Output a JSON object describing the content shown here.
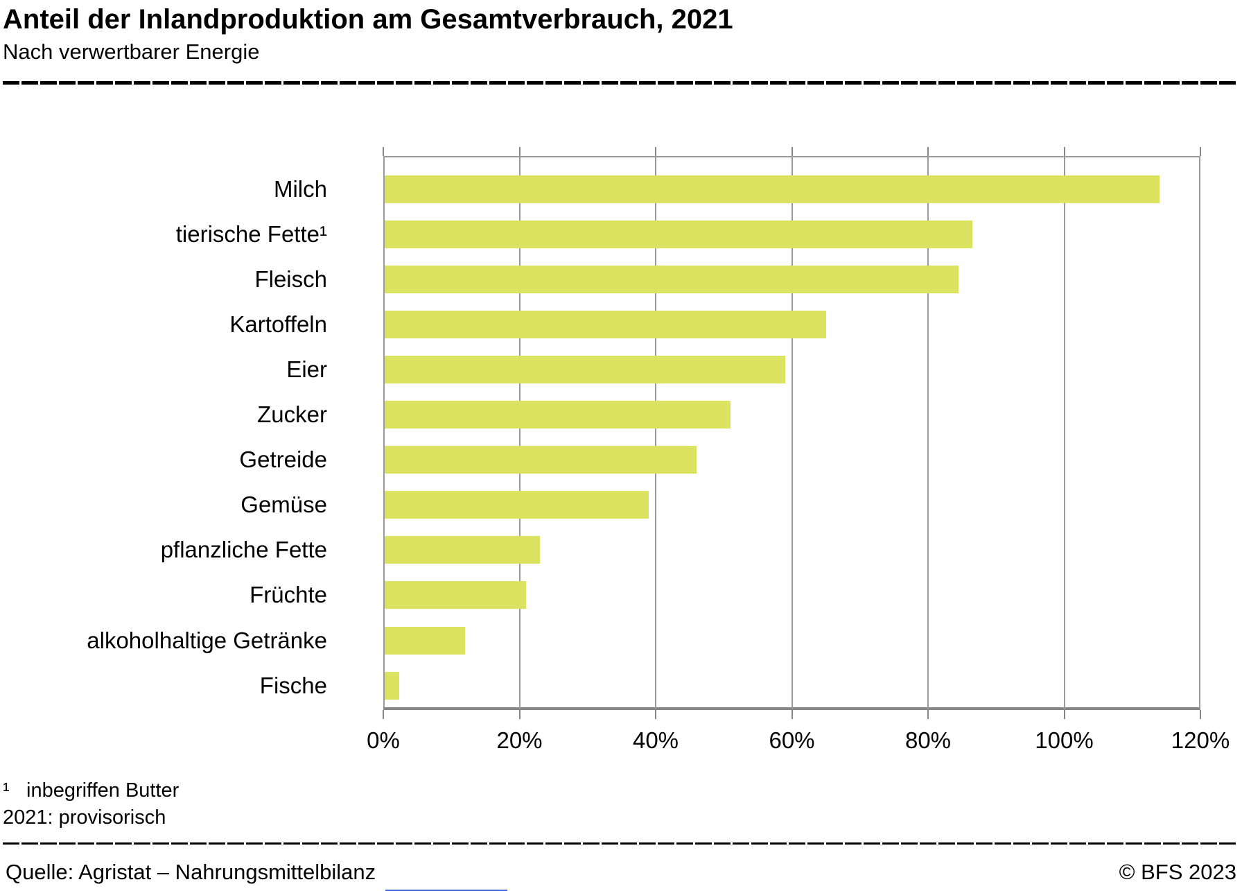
{
  "header": {
    "title": "Anteil der Inlandproduktion am Gesamtverbrauch, 2021",
    "subtitle": "Nach verwertbarer Energie"
  },
  "chart_data": {
    "type": "bar",
    "orientation": "horizontal",
    "title": "Anteil der Inlandproduktion am Gesamtverbrauch, 2021",
    "subtitle": "Nach verwertbarer Energie",
    "categories": [
      "Milch",
      "tierische Fette¹",
      "Fleisch",
      "Kartoffeln",
      "Eier",
      "Zucker",
      "Getreide",
      "Gemüse",
      "pflanzliche Fette",
      "Früchte",
      "alkoholhaltige Getränke",
      "Fische"
    ],
    "values": [
      114,
      86.5,
      84.5,
      65,
      59,
      51,
      46,
      39,
      23,
      21,
      12,
      2.3
    ],
    "unit": "%",
    "xlim": [
      0,
      120
    ],
    "x_ticks": [
      0,
      20,
      40,
      60,
      80,
      100,
      120
    ],
    "x_tick_labels": [
      "0%",
      "20%",
      "40%",
      "60%",
      "80%",
      "100%",
      "120%"
    ],
    "grid": "vertical",
    "legend": "none",
    "bar_color": "#dbe360",
    "grid_color": "#9a9a9a",
    "axis_color": "#878787"
  },
  "footnotes": {
    "line1_marker": "¹",
    "line1_text": "inbegriffen Butter",
    "line2_text": "2021: provisorisch"
  },
  "footer": {
    "source": "Quelle: Agristat – Nahrungsmittelbilanz",
    "copyright": "© BFS 2023"
  }
}
